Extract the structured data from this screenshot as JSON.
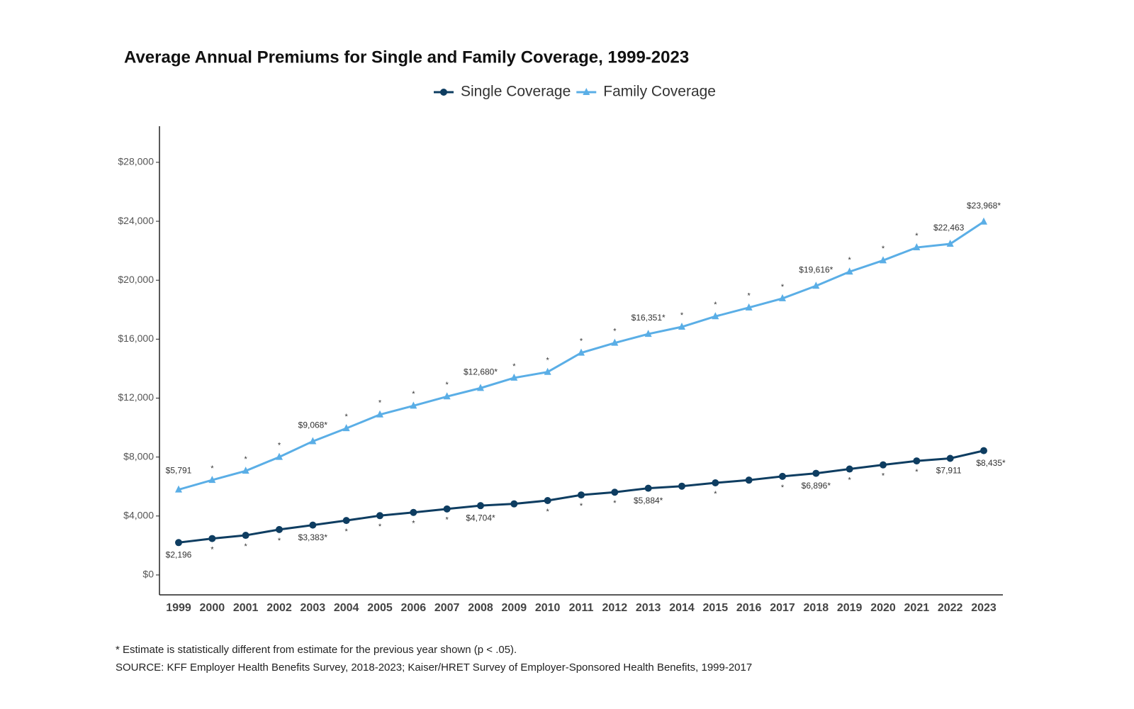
{
  "chart_data": {
    "type": "line",
    "title": "Average Annual Premiums for Single and Family Coverage, 1999-2023",
    "categories": [
      "1999",
      "2000",
      "2001",
      "2002",
      "2003",
      "2004",
      "2005",
      "2006",
      "2007",
      "2008",
      "2009",
      "2010",
      "2011",
      "2012",
      "2013",
      "2014",
      "2015",
      "2016",
      "2017",
      "2018",
      "2019",
      "2020",
      "2021",
      "2022",
      "2023"
    ],
    "series": [
      {
        "name": "Single Coverage",
        "color": "#0e3d61",
        "marker": "circle",
        "values": [
          2196,
          2471,
          2689,
          3083,
          3383,
          3695,
          4024,
          4242,
          4479,
          4704,
          4824,
          5049,
          5429,
          5615,
          5884,
          6025,
          6251,
          6435,
          6690,
          6896,
          7188,
          7470,
          7739,
          7911,
          8435
        ],
        "value_labels": [
          "$2,196",
          "*",
          "*",
          "*",
          "$3,383*",
          "*",
          "*",
          "*",
          "*",
          "$4,704*",
          null,
          "*",
          "*",
          "*",
          "$5,884*",
          null,
          "*",
          null,
          "*",
          "$6,896*",
          "*",
          "*",
          "*",
          "$7,911",
          "$8,435*"
        ]
      },
      {
        "name": "Family Coverage",
        "color": "#5aaee6",
        "marker": "triangle",
        "values": [
          5791,
          6438,
          7061,
          8003,
          9068,
          9950,
          10880,
          11480,
          12106,
          12680,
          13375,
          13770,
          15073,
          15745,
          16351,
          16834,
          17545,
          18142,
          18764,
          19616,
          20576,
          21342,
          22221,
          22463,
          23968
        ],
        "value_labels": [
          "$5,791",
          "*",
          "*",
          "*",
          "$9,068*",
          "*",
          "*",
          "*",
          "*",
          "$12,680*",
          "*",
          "*",
          "*",
          "*",
          "$16,351*",
          "*",
          "*",
          "*",
          "*",
          "$19,616*",
          "*",
          "*",
          "*",
          "$22,463",
          "$23,968*"
        ]
      }
    ],
    "ylim": [
      -1350,
      30450
    ],
    "yticks": [
      {
        "value": 0,
        "label": "$0"
      },
      {
        "value": 4000,
        "label": "$4,000"
      },
      {
        "value": 8000,
        "label": "$8,000"
      },
      {
        "value": 12000,
        "label": "$12,000"
      },
      {
        "value": 16000,
        "label": "$16,000"
      },
      {
        "value": 20000,
        "label": "$20,000"
      },
      {
        "value": 24000,
        "label": "$24,000"
      },
      {
        "value": 28000,
        "label": "$28,000"
      }
    ],
    "grid": false,
    "legend": "top",
    "footnote": "* Estimate is statistically different from estimate for the previous year shown (p < .05).",
    "source": "SOURCE: KFF Employer Health Benefits Survey, 2018-2023; Kaiser/HRET Survey of Employer-Sponsored Health Benefits, 1999-2017"
  }
}
